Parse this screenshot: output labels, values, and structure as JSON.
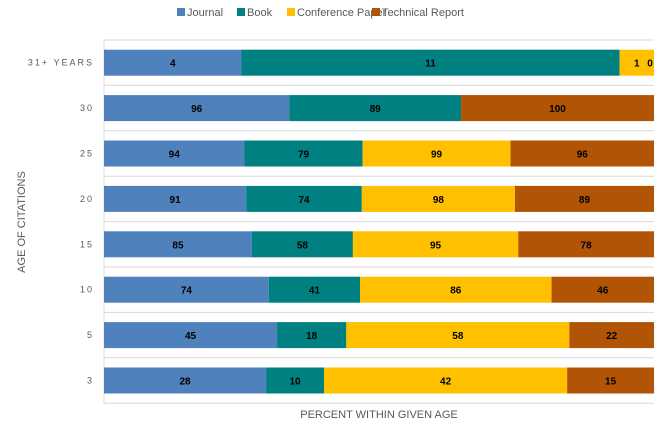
{
  "chart_data": {
    "type": "bar",
    "orientation": "horizontal",
    "stacked": "percent",
    "xlabel": "PERCENT WITHIN GIVEN AGE",
    "ylabel": "AGE OF CITATIONS",
    "categories": [
      "31+ YEARS",
      "30",
      "25",
      "20",
      "15",
      "10",
      "5",
      "3"
    ],
    "series": [
      {
        "name": "Journal",
        "color": "#4F81BD",
        "values": [
          4,
          96,
          94,
          91,
          85,
          74,
          45,
          28
        ]
      },
      {
        "name": "Book",
        "color": "#008080",
        "values": [
          11,
          89,
          79,
          74,
          58,
          41,
          18,
          10
        ]
      },
      {
        "name": "Conference Paper",
        "color": "#FFC000",
        "values": [
          1,
          0,
          99,
          98,
          95,
          86,
          58,
          42
        ]
      },
      {
        "name": "Technical Report",
        "color": "#B15405",
        "values": [
          0,
          100,
          96,
          89,
          78,
          46,
          22,
          15
        ]
      }
    ],
    "legend": "top",
    "grid": "horizontal separators",
    "data_labels": true
  }
}
